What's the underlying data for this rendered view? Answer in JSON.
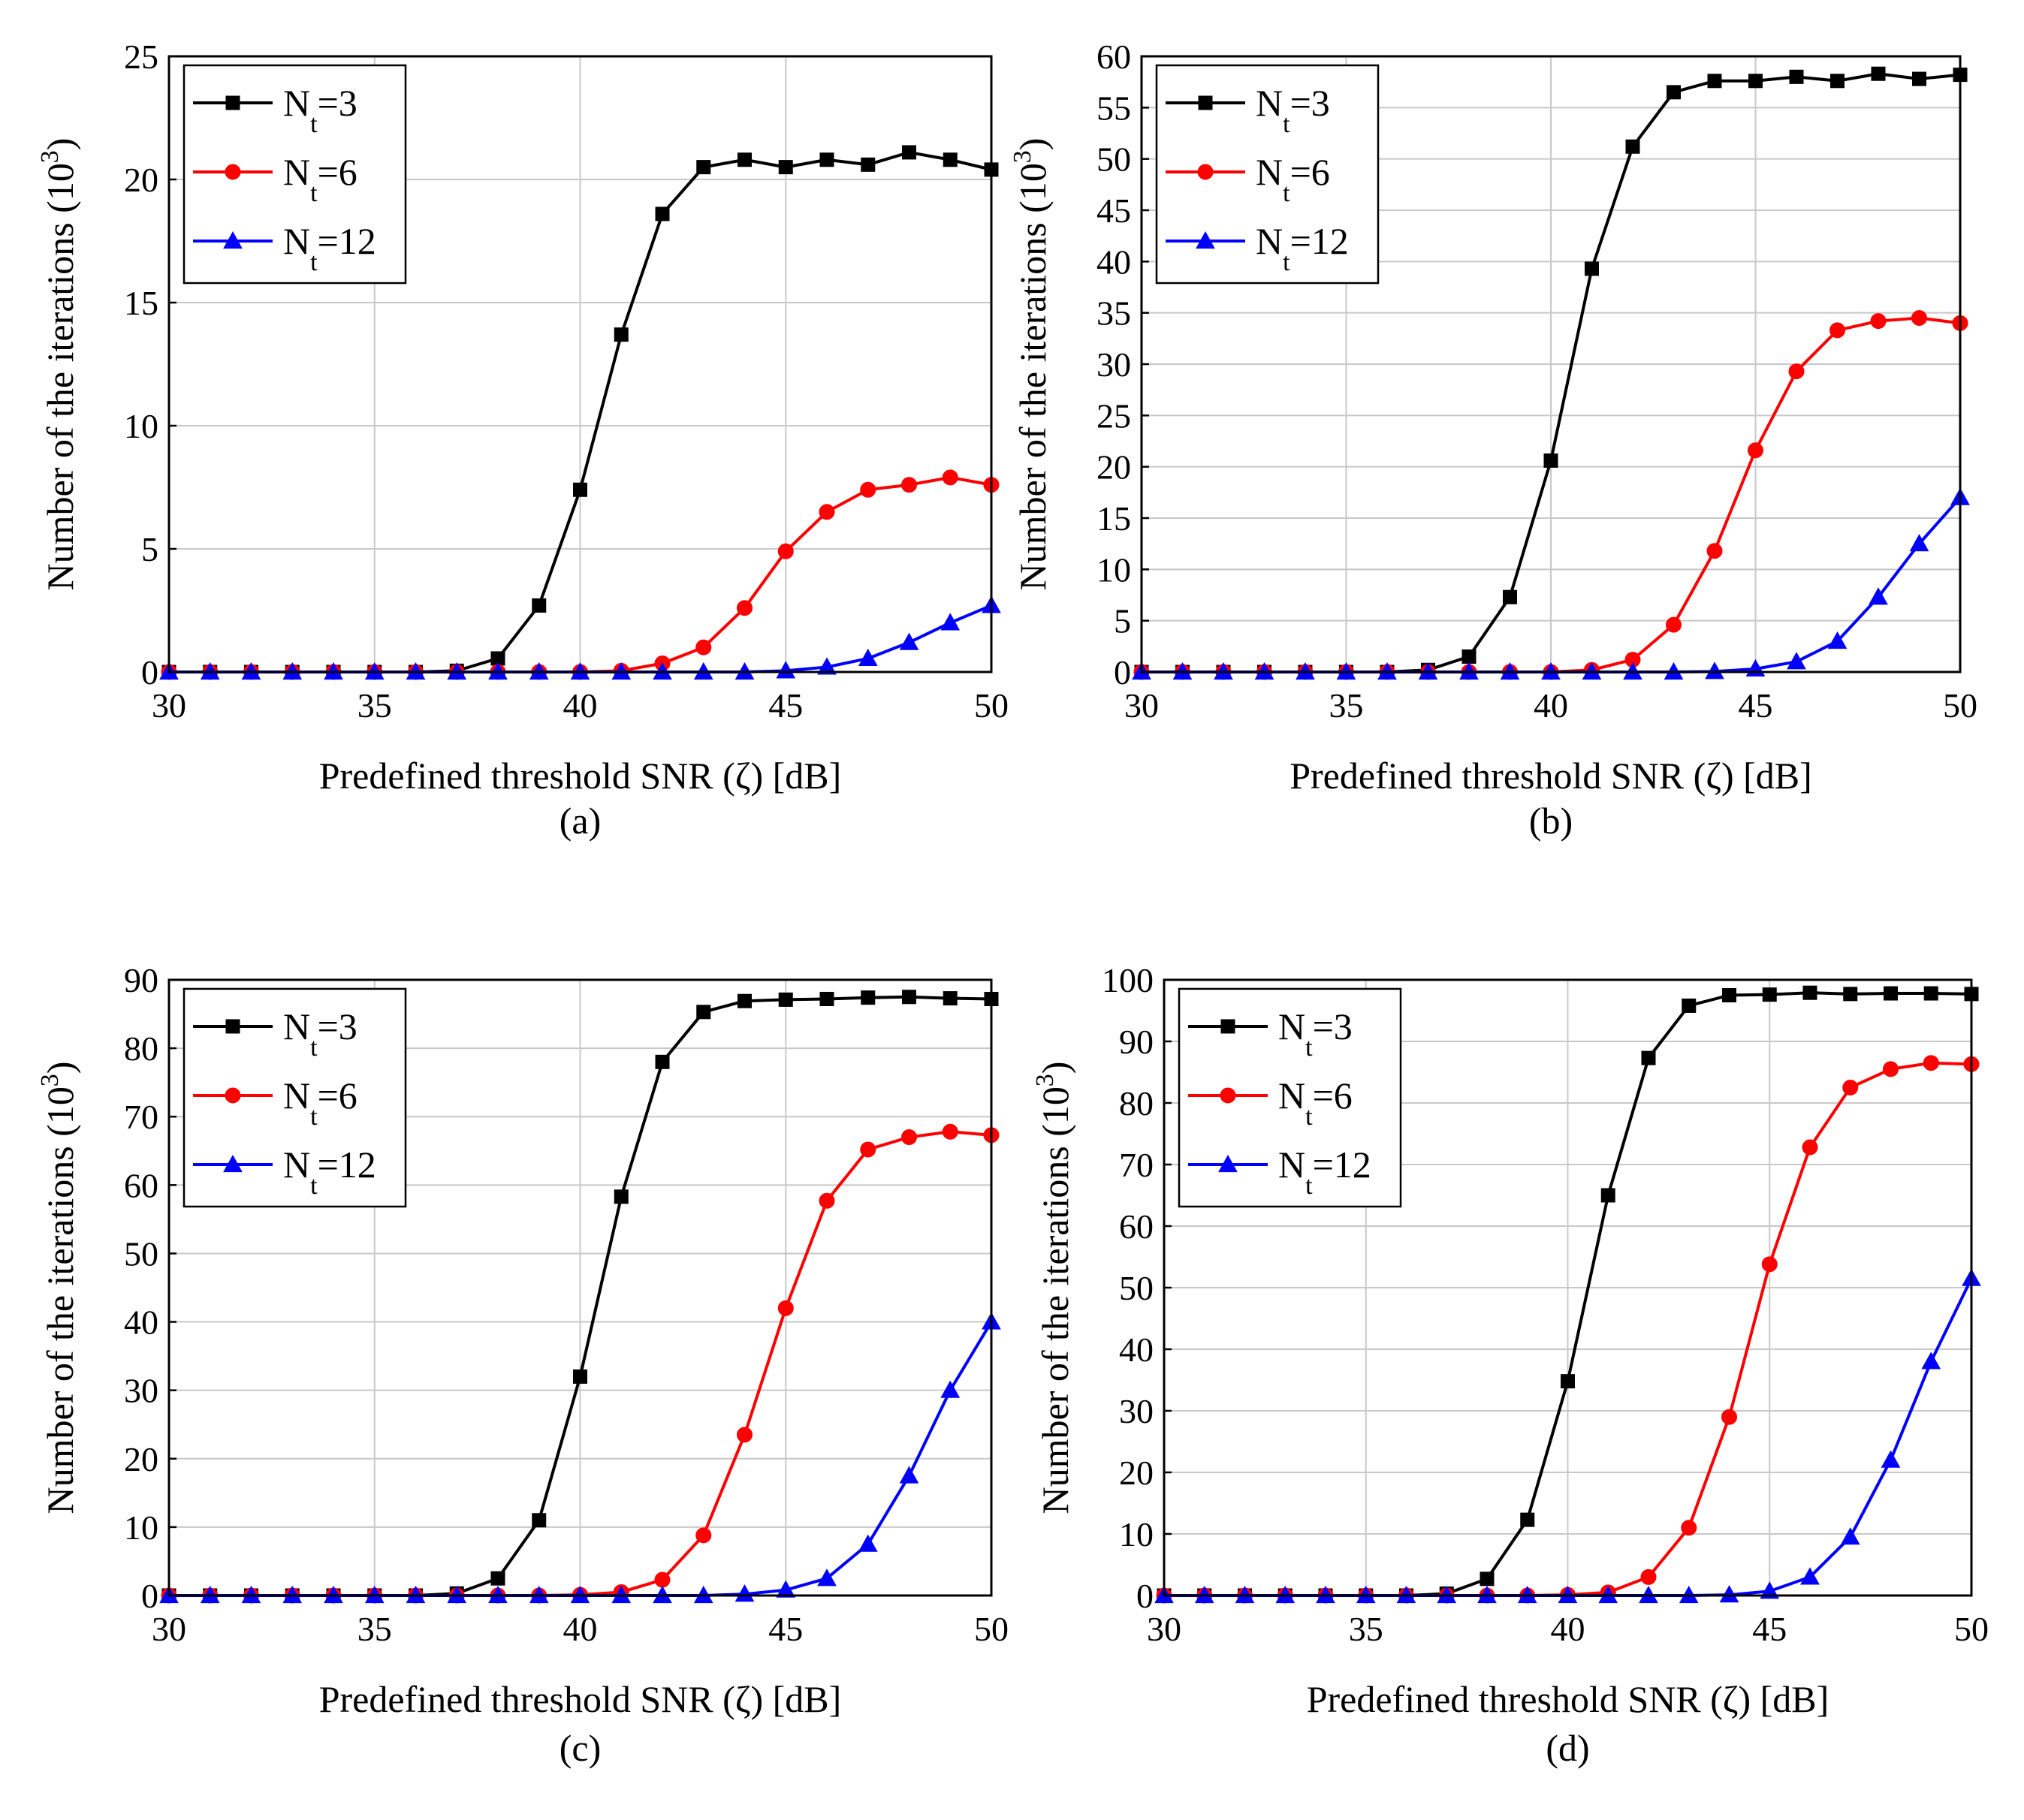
{
  "chart_data": [
    {
      "type": "line",
      "caption": "(a)",
      "xlabel": "Predefined threshold SNR (ζ) [dB]",
      "ylabel_main": "Number of the iterations (10",
      "ylabel_exp": "3",
      "ylabel_close": ")",
      "xlim": [
        30,
        50
      ],
      "ylim": [
        0,
        25
      ],
      "xticks": [
        30,
        35,
        40,
        45,
        50
      ],
      "yticks": [
        0,
        5,
        10,
        15,
        20,
        25
      ],
      "grid": true,
      "legend_position": "top-left",
      "x": [
        30,
        31,
        32,
        33,
        34,
        35,
        36,
        37,
        38,
        39,
        40,
        41,
        42,
        43,
        44,
        45,
        46,
        47,
        48,
        49,
        50
      ],
      "series": [
        {
          "name": "Nt=3",
          "label_main": "N",
          "label_sub": "t",
          "label_tail": "=3",
          "color": "#000000",
          "marker": "square",
          "values": [
            0,
            0,
            0,
            0,
            0,
            0,
            0,
            0.05,
            0.55,
            2.7,
            7.4,
            13.7,
            18.6,
            20.5,
            20.8,
            20.5,
            20.8,
            20.6,
            21.1,
            20.8,
            20.4
          ]
        },
        {
          "name": "Nt=6",
          "label_main": "N",
          "label_sub": "t",
          "label_tail": "=6",
          "color": "#ff0000",
          "marker": "circle",
          "values": [
            0,
            0,
            0,
            0,
            0,
            0,
            0,
            0,
            0,
            0,
            0,
            0.05,
            0.35,
            1.0,
            2.6,
            4.9,
            6.5,
            7.4,
            7.6,
            7.9,
            7.6
          ]
        },
        {
          "name": "Nt=12",
          "label_main": "N",
          "label_sub": "t",
          "label_tail": "=12",
          "color": "#0000ff",
          "marker": "triangle",
          "values": [
            0,
            0,
            0,
            0,
            0,
            0,
            0,
            0,
            0,
            0,
            0,
            0,
            0,
            0,
            0,
            0.05,
            0.2,
            0.55,
            1.2,
            2.0,
            2.7
          ]
        }
      ]
    },
    {
      "type": "line",
      "caption": "(b)",
      "xlabel": "Predefined threshold SNR (ζ) [dB]",
      "ylabel_main": "Number of the iterations (10",
      "ylabel_exp": "3",
      "ylabel_close": ")",
      "xlim": [
        30,
        50
      ],
      "ylim": [
        0,
        60
      ],
      "xticks": [
        30,
        35,
        40,
        45,
        50
      ],
      "yticks": [
        0,
        5,
        10,
        15,
        20,
        25,
        30,
        35,
        40,
        45,
        50,
        55,
        60
      ],
      "grid": true,
      "legend_position": "top-left",
      "x": [
        30,
        31,
        32,
        33,
        34,
        35,
        36,
        37,
        38,
        39,
        40,
        41,
        42,
        43,
        44,
        45,
        46,
        47,
        48,
        49,
        50
      ],
      "series": [
        {
          "name": "Nt=3",
          "label_main": "N",
          "label_sub": "t",
          "label_tail": "=3",
          "color": "#000000",
          "marker": "square",
          "values": [
            0,
            0,
            0,
            0,
            0,
            0,
            0,
            0.2,
            1.5,
            7.3,
            20.6,
            39.3,
            51.2,
            56.5,
            57.6,
            57.6,
            58.0,
            57.6,
            58.3,
            57.8,
            58.2
          ]
        },
        {
          "name": "Nt=6",
          "label_main": "N",
          "label_sub": "t",
          "label_tail": "=6",
          "color": "#ff0000",
          "marker": "circle",
          "values": [
            0,
            0,
            0,
            0,
            0,
            0,
            0,
            0,
            0,
            0,
            0,
            0.2,
            1.2,
            4.6,
            11.8,
            21.6,
            29.3,
            33.3,
            34.2,
            34.5,
            34.0
          ]
        },
        {
          "name": "Nt=12",
          "label_main": "N",
          "label_sub": "t",
          "label_tail": "=12",
          "color": "#0000ff",
          "marker": "triangle",
          "values": [
            0,
            0,
            0,
            0,
            0,
            0,
            0,
            0,
            0,
            0,
            0,
            0,
            0,
            0,
            0.05,
            0.3,
            1.0,
            3.0,
            7.3,
            12.5,
            17.0
          ]
        }
      ]
    },
    {
      "type": "line",
      "caption": "(c)",
      "xlabel": "Predefined threshold SNR (ζ) [dB]",
      "ylabel_main": "Number of the iterations (10",
      "ylabel_exp": "3",
      "ylabel_close": ")",
      "xlim": [
        30,
        50
      ],
      "ylim": [
        0,
        90
      ],
      "xticks": [
        30,
        35,
        40,
        45,
        50
      ],
      "yticks": [
        0,
        10,
        20,
        30,
        40,
        50,
        60,
        70,
        80,
        90
      ],
      "grid": true,
      "legend_position": "top-left",
      "x": [
        30,
        31,
        32,
        33,
        34,
        35,
        36,
        37,
        38,
        39,
        40,
        41,
        42,
        43,
        44,
        45,
        46,
        47,
        48,
        49,
        50
      ],
      "series": [
        {
          "name": "Nt=3",
          "label_main": "N",
          "label_sub": "t",
          "label_tail": "=3",
          "color": "#000000",
          "marker": "square",
          "values": [
            0,
            0,
            0,
            0,
            0,
            0,
            0,
            0.3,
            2.5,
            11.0,
            32.0,
            58.3,
            78.0,
            85.3,
            86.9,
            87.1,
            87.2,
            87.4,
            87.5,
            87.3,
            87.2
          ]
        },
        {
          "name": "Nt=6",
          "label_main": "N",
          "label_sub": "t",
          "label_tail": "=6",
          "color": "#ff0000",
          "marker": "circle",
          "values": [
            0,
            0,
            0,
            0,
            0,
            0,
            0,
            0,
            0,
            0,
            0.1,
            0.5,
            2.3,
            8.8,
            23.5,
            42.0,
            57.7,
            65.2,
            67.0,
            67.8,
            67.3
          ]
        },
        {
          "name": "Nt=12",
          "label_main": "N",
          "label_sub": "t",
          "label_tail": "=12",
          "color": "#0000ff",
          "marker": "triangle",
          "values": [
            0,
            0,
            0,
            0,
            0,
            0,
            0,
            0,
            0,
            0,
            0,
            0,
            0,
            0,
            0.2,
            0.8,
            2.5,
            7.5,
            17.5,
            30.0,
            40.0
          ]
        }
      ]
    },
    {
      "type": "line",
      "caption": "(d)",
      "xlabel": "Predefined threshold SNR (ζ) [dB]",
      "ylabel_main": "Number of the iterations (10",
      "ylabel_exp": "3",
      "ylabel_close": ")",
      "xlim": [
        30,
        50
      ],
      "ylim": [
        0,
        100
      ],
      "xticks": [
        30,
        35,
        40,
        45,
        50
      ],
      "yticks": [
        0,
        10,
        20,
        30,
        40,
        50,
        60,
        70,
        80,
        90,
        100
      ],
      "grid": true,
      "legend_position": "top-left",
      "x": [
        30,
        31,
        32,
        33,
        34,
        35,
        36,
        37,
        38,
        39,
        40,
        41,
        42,
        43,
        44,
        45,
        46,
        47,
        48,
        49,
        50
      ],
      "series": [
        {
          "name": "Nt=3",
          "label_main": "N",
          "label_sub": "t",
          "label_tail": "=3",
          "color": "#000000",
          "marker": "square",
          "values": [
            0,
            0,
            0,
            0,
            0,
            0,
            0,
            0.3,
            2.7,
            12.3,
            34.8,
            65.0,
            87.3,
            95.8,
            97.5,
            97.6,
            97.9,
            97.7,
            97.8,
            97.8,
            97.7
          ]
        },
        {
          "name": "Nt=6",
          "label_main": "N",
          "label_sub": "t",
          "label_tail": "=6",
          "color": "#ff0000",
          "marker": "circle",
          "values": [
            0,
            0,
            0,
            0,
            0,
            0,
            0,
            0,
            0,
            0,
            0.1,
            0.5,
            3.0,
            11.0,
            29.0,
            53.8,
            72.8,
            82.5,
            85.5,
            86.5,
            86.3
          ]
        },
        {
          "name": "Nt=12",
          "label_main": "N",
          "label_sub": "t",
          "label_tail": "=12",
          "color": "#0000ff",
          "marker": "triangle",
          "values": [
            0,
            0,
            0,
            0,
            0,
            0,
            0,
            0,
            0,
            0,
            0,
            0,
            0,
            0,
            0.1,
            0.7,
            3.0,
            9.5,
            22.0,
            38.0,
            51.5
          ]
        }
      ]
    }
  ]
}
